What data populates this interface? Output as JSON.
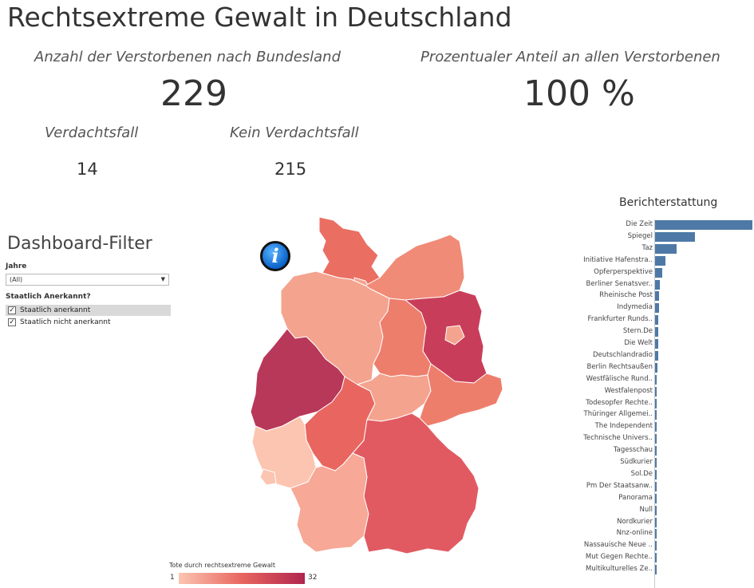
{
  "dashboard": {
    "title": "Rechtsextreme Gewalt in Deutschland"
  },
  "kpis": {
    "deaths_label": "Anzahl der Verstorbenen nach Bundesland",
    "deaths_value": "229",
    "share_label": "Prozentualer Anteil an allen Verstorbenen",
    "share_value": "100 %",
    "suspected_label": "Verdachtsfall",
    "suspected_value": "14",
    "not_suspected_label": "Kein Verdachtsfall",
    "not_suspected_value": "215"
  },
  "filters": {
    "title": "Dashboard-Filter",
    "year_label": "Jahre",
    "year_value": "(All)",
    "recognized_label": "Staatlich Anerkannt?",
    "options": [
      {
        "label": "Staatlich anerkannt",
        "checked": true,
        "selected": true
      },
      {
        "label": "Staatlich nicht anerkannt",
        "checked": true,
        "selected": false
      }
    ]
  },
  "map": {
    "legend_title": "Tote durch rechtsextreme Gewalt",
    "legend_min": "1",
    "legend_max": "32",
    "color_low": "#fbc5b1",
    "color_high": "#b0254e"
  },
  "reporting": {
    "title": "Berichterstattung",
    "bar_color": "#4e79a7",
    "sources": [
      {
        "label": "Die Zeit",
        "value": 122
      },
      {
        "label": "Spiegel",
        "value": 50
      },
      {
        "label": "Taz",
        "value": 27
      },
      {
        "label": "Initiative Hafenstra..",
        "value": 13
      },
      {
        "label": "Opferperspektive",
        "value": 9
      },
      {
        "label": "Berliner Senatsver..",
        "value": 6
      },
      {
        "label": "Rheinische Post",
        "value": 5
      },
      {
        "label": "Indymedia",
        "value": 5
      },
      {
        "label": "Frankfurter Runds..",
        "value": 4
      },
      {
        "label": "Stern.De",
        "value": 4
      },
      {
        "label": "Die Welt",
        "value": 4
      },
      {
        "label": "Deutschlandradio",
        "value": 4
      },
      {
        "label": "Berlin Rechtsaußen",
        "value": 3
      },
      {
        "label": "Westfälische Rund..",
        "value": 1
      },
      {
        "label": "Westfalenpost",
        "value": 1
      },
      {
        "label": "Todesopfer Rechte..",
        "value": 1
      },
      {
        "label": "Thüringer Allgemei..",
        "value": 1
      },
      {
        "label": "The Independent",
        "value": 1
      },
      {
        "label": "Technische Univers..",
        "value": 1
      },
      {
        "label": "Tagesschau",
        "value": 1
      },
      {
        "label": "Südkurier",
        "value": 1
      },
      {
        "label": "Sol.De",
        "value": 1
      },
      {
        "label": "Pm Der Staatsanw..",
        "value": 1
      },
      {
        "label": "Panorama",
        "value": 1
      },
      {
        "label": "Null",
        "value": 1
      },
      {
        "label": "Nordkurier",
        "value": 1
      },
      {
        "label": "Nnz-online",
        "value": 1
      },
      {
        "label": "Nassauische Neue ..",
        "value": 1
      },
      {
        "label": "Mut Gegen Rechte..",
        "value": 1
      },
      {
        "label": "Multikulturelles Ze..",
        "value": 1
      }
    ]
  }
}
